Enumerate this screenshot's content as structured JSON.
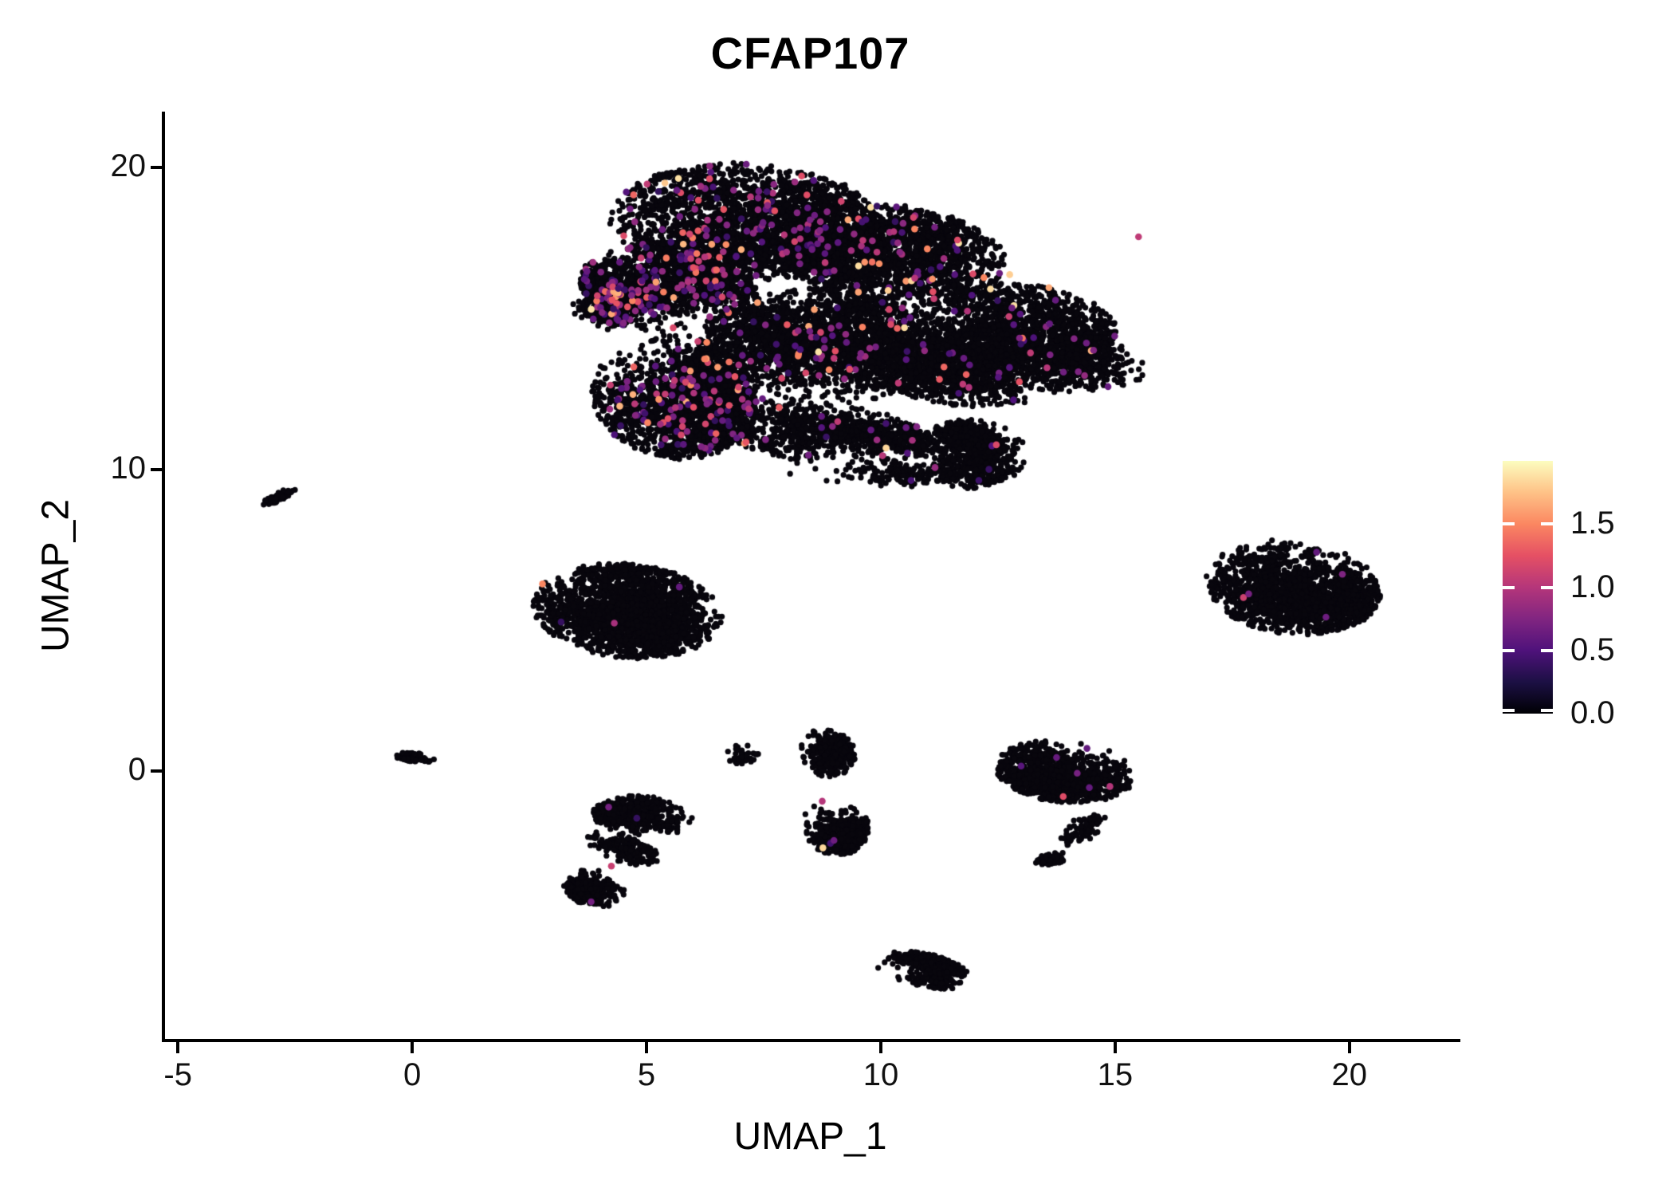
{
  "title": "CFAP107",
  "axes": {
    "x": {
      "label": "UMAP_1",
      "domain": [
        -5.31,
        22.3
      ],
      "ticks": [
        -5,
        0,
        5,
        10,
        15,
        20
      ],
      "tick_labels": [
        "-5",
        "0",
        "5",
        "10",
        "15",
        "20"
      ]
    },
    "y": {
      "label": "UMAP_2",
      "domain": [
        -8.93,
        21.85
      ],
      "ticks": [
        0,
        10,
        20
      ],
      "tick_labels": [
        "0",
        "10",
        "20"
      ]
    }
  },
  "legend": {
    "domain": [
      0,
      2.0
    ],
    "tick_values": [
      0.0,
      0.5,
      1.0,
      1.5
    ],
    "tick_labels": [
      "0.0",
      "0.5",
      "1.0",
      "1.5"
    ],
    "colormap_name": "magma",
    "colormap_stops": [
      "#000004",
      "#1C1044",
      "#4F127B",
      "#812581",
      "#B5367A",
      "#E55064",
      "#FB8761",
      "#FEC287",
      "#FCFDBF"
    ]
  },
  "chart_data": {
    "type": "scatter",
    "title": "CFAP107",
    "xlabel": "UMAP_1",
    "ylabel": "UMAP_2",
    "xlim": [
      -5.31,
      22.3
    ],
    "ylim": [
      -8.93,
      21.85
    ],
    "grid": false,
    "legend_position": "right",
    "point_color_zero": "#08060d",
    "color_scale_range": [
      0,
      2.0
    ],
    "approx_total_points": 23000,
    "clusters": [
      {
        "name": "main-top",
        "cx": 7.1,
        "cy": 18.2,
        "rx": 2.9,
        "ry": 1.95,
        "rot": -4,
        "n": 2500,
        "expr": 0.045
      },
      {
        "name": "main-top-right",
        "cx": 10.4,
        "cy": 16.9,
        "rx": 2.5,
        "ry": 1.8,
        "rot": -18,
        "n": 2100,
        "expr": 0.03
      },
      {
        "name": "main-upper-left",
        "cx": 5.5,
        "cy": 15.9,
        "rx": 2.0,
        "ry": 1.4,
        "rot": -22,
        "n": 1500,
        "expr": 0.075
      },
      {
        "name": "main-left-spike",
        "cx": 3.9,
        "cy": 15.15,
        "rx": 0.8,
        "ry": 0.45,
        "rot": -35,
        "n": 200,
        "expr": 0.1
      },
      {
        "name": "main-lower-left",
        "cx": 5.6,
        "cy": 12.4,
        "rx": 1.75,
        "ry": 2.1,
        "rot": 18,
        "n": 2000,
        "expr": 0.055
      },
      {
        "name": "main-center",
        "cx": 8.6,
        "cy": 13.9,
        "rx": 2.5,
        "ry": 2.1,
        "rot": 0,
        "n": 2400,
        "expr": 0.022
      },
      {
        "name": "main-right-lobe",
        "cx": 12.4,
        "cy": 14.1,
        "rx": 2.7,
        "ry": 2.0,
        "rot": 12,
        "n": 2700,
        "expr": 0.018
      },
      {
        "name": "main-right-tip",
        "cx": 14.5,
        "cy": 13.5,
        "rx": 1.3,
        "ry": 1.05,
        "rot": 0,
        "n": 450,
        "expr": 0.012
      },
      {
        "name": "main-bottom-bump",
        "cx": 11.9,
        "cy": 10.5,
        "rx": 1.2,
        "ry": 1.15,
        "rot": 0,
        "n": 750,
        "expr": 0.01
      },
      {
        "name": "main-bottom-band",
        "cx": 8.8,
        "cy": 11.2,
        "rx": 2.4,
        "ry": 1.0,
        "rot": -10,
        "n": 950,
        "expr": 0.018
      },
      {
        "name": "main-under-sparse",
        "cx": 9.6,
        "cy": 10.0,
        "rx": 2.0,
        "ry": 0.55,
        "rot": -6,
        "n": 160,
        "expr": 0.012
      },
      {
        "name": "islet-left-streak",
        "cx": -2.85,
        "cy": 9.1,
        "rx": 0.5,
        "ry": 0.13,
        "rot": 40,
        "n": 70,
        "expr": 0
      },
      {
        "name": "left-mid-blob",
        "cx": 4.6,
        "cy": 5.3,
        "rx": 2.05,
        "ry": 1.55,
        "rot": -14,
        "n": 2200,
        "expr": 0.0012
      },
      {
        "name": "right-oval",
        "cx": 18.8,
        "cy": 6.1,
        "rx": 1.9,
        "ry": 1.55,
        "rot": -20,
        "n": 1800,
        "expr": 0.0012
      },
      {
        "name": "tiny-streak-origin",
        "cx": 0.05,
        "cy": 0.45,
        "rx": 0.45,
        "ry": 0.15,
        "rot": -10,
        "n": 80,
        "expr": 0
      },
      {
        "name": "small-arc",
        "cx": 7.0,
        "cy": 0.5,
        "rx": 0.5,
        "ry": 0.42,
        "rot": 0,
        "n": 42,
        "expr": 0
      },
      {
        "name": "vertical-top",
        "cx": 8.85,
        "cy": 0.6,
        "rx": 0.6,
        "ry": 0.8,
        "rot": 8,
        "n": 330,
        "expr": 0.003
      },
      {
        "name": "vertical-bottom",
        "cx": 9.05,
        "cy": -1.8,
        "rx": 0.7,
        "ry": 1.0,
        "rot": 3,
        "n": 500,
        "expr": 0.004
      },
      {
        "name": "right-blob",
        "cx": 13.95,
        "cy": 0.0,
        "rx": 1.5,
        "ry": 1.05,
        "rot": -10,
        "n": 1150,
        "expr": 0.0028
      },
      {
        "name": "right-blob-tail",
        "cx": 14.3,
        "cy": -1.9,
        "rx": 0.35,
        "ry": 0.75,
        "rot": -35,
        "n": 90,
        "expr": 0
      },
      {
        "name": "right-blob-hook",
        "cx": 13.7,
        "cy": -2.9,
        "rx": 0.45,
        "ry": 0.18,
        "rot": 15,
        "n": 60,
        "expr": 0
      },
      {
        "name": "s-cluster-upper",
        "cx": 4.95,
        "cy": -1.5,
        "rx": 1.1,
        "ry": 0.68,
        "rot": -8,
        "n": 480,
        "expr": 0.002
      },
      {
        "name": "s-cluster-mid",
        "cx": 4.5,
        "cy": -2.55,
        "rx": 0.85,
        "ry": 0.45,
        "rot": -30,
        "n": 200,
        "expr": 0
      },
      {
        "name": "s-cluster-lower",
        "cx": 3.95,
        "cy": -3.9,
        "rx": 0.8,
        "ry": 0.6,
        "rot": -25,
        "n": 300,
        "expr": 0.003
      },
      {
        "name": "bottom-blob",
        "cx": 10.9,
        "cy": -6.6,
        "rx": 1.05,
        "ry": 0.55,
        "rot": -20,
        "n": 430,
        "expr": 0
      }
    ],
    "highlight_points": [
      {
        "x": 3.82,
        "y": 15.3,
        "value": 1.9
      },
      {
        "x": 3.95,
        "y": 15.75,
        "value": 1.15
      },
      {
        "x": 2.78,
        "y": 6.2,
        "value": 1.5
      },
      {
        "x": 5.2,
        "y": 16.2,
        "value": 1.6
      },
      {
        "x": 6.1,
        "y": 17.9,
        "value": 1.3
      },
      {
        "x": 11.1,
        "y": 16.3,
        "value": 1.55
      },
      {
        "x": 12.2,
        "y": 16.35,
        "value": 1.5
      },
      {
        "x": 12.75,
        "y": 16.45,
        "value": 1.8
      },
      {
        "x": 15.5,
        "y": 17.7,
        "value": 1.05
      },
      {
        "x": 19.3,
        "y": 7.25,
        "value": 0.6
      },
      {
        "x": 19.5,
        "y": 5.1,
        "value": 0.65
      },
      {
        "x": 9.0,
        "y": -2.3,
        "value": 0.65
      },
      {
        "x": 8.75,
        "y": -1.0,
        "value": 1.0
      },
      {
        "x": 4.25,
        "y": -3.15,
        "value": 1.1
      },
      {
        "x": 14.4,
        "y": 0.75,
        "value": 0.6
      },
      {
        "x": 13.75,
        "y": 0.45,
        "value": 0.62
      },
      {
        "x": 14.45,
        "y": -0.55,
        "value": 0.6
      },
      {
        "x": 5.7,
        "y": 6.1,
        "value": 0.6
      }
    ]
  }
}
